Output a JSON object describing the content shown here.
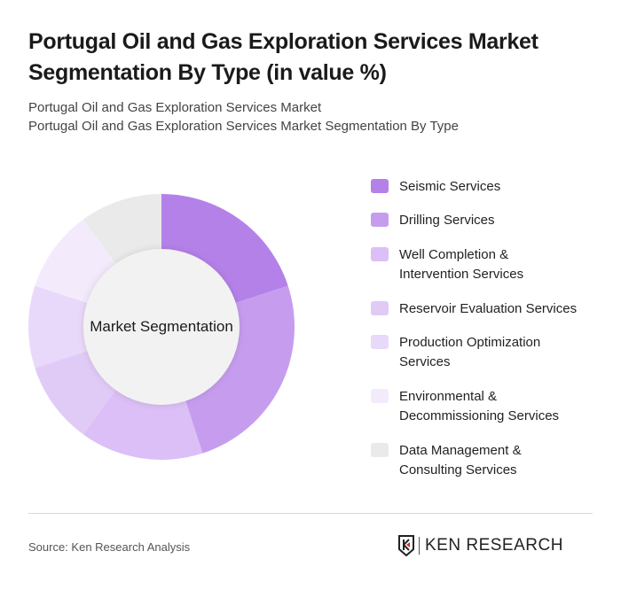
{
  "title": "Portugal Oil and Gas Exploration Services Market Segmentation By Type (in value %)",
  "subtitle_line1": "Portugal Oil and Gas Exploration Services Market",
  "subtitle_line2": "Portugal Oil and Gas Exploration Services Market Segmentation By Type",
  "center_label": "Market Segmentation",
  "source": "Source: Ken Research Analysis",
  "logo_text": "KEN RESEARCH",
  "legend": [
    {
      "label": "Seismic Services",
      "color": "#b481e9"
    },
    {
      "label": "Drilling Services",
      "color": "#c69dee"
    },
    {
      "label": "Well Completion & Intervention Services",
      "color": "#dbbff6"
    },
    {
      "label": "Reservoir Evaluation Services",
      "color": "#e0cbf7"
    },
    {
      "label": "Production Optimization Services",
      "color": "#e8d9fa"
    },
    {
      "label": "Environmental & Decommissioning Services",
      "color": "#f3ebfc"
    },
    {
      "label": "Data Management & Consulting Services",
      "color": "#eaeaea"
    }
  ],
  "chart_data": {
    "type": "pie",
    "title": "Portugal Oil and Gas Exploration Services Market Segmentation By Type (in value %)",
    "categories": [
      "Seismic Services",
      "Drilling Services",
      "Well Completion & Intervention Services",
      "Reservoir Evaluation Services",
      "Production Optimization Services",
      "Environmental & Decommissioning Services",
      "Data Management & Consulting Services"
    ],
    "values": [
      20,
      25,
      15,
      10,
      10,
      10,
      10
    ],
    "colors": [
      "#b481e9",
      "#c69dee",
      "#dbbff6",
      "#e0cbf7",
      "#e8d9fa",
      "#f3ebfc",
      "#eaeaea"
    ],
    "donut": true,
    "center_label": "Market Segmentation",
    "legend_position": "right"
  }
}
